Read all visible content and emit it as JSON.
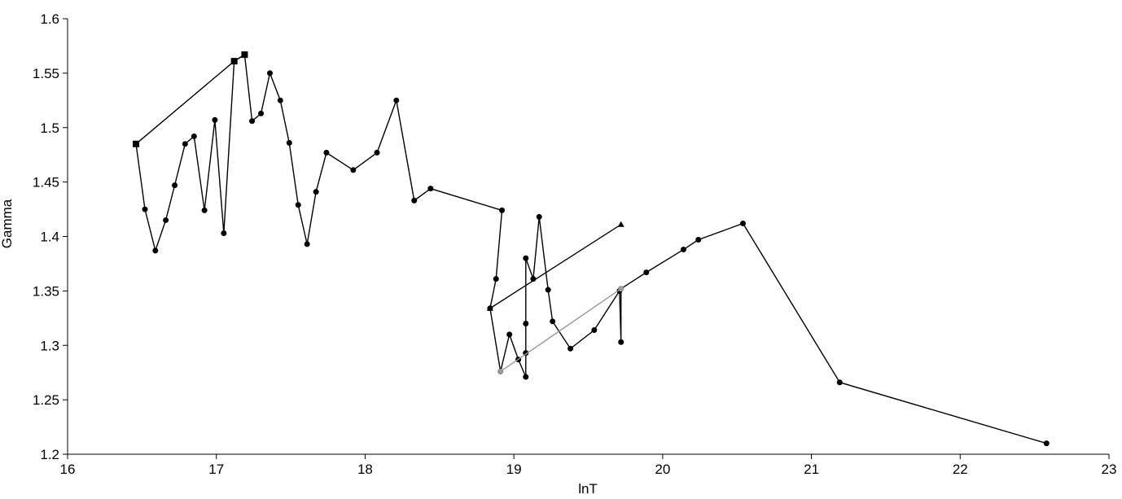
{
  "chart_data": {
    "type": "line",
    "x_label": "lnT",
    "y_label": "Gamma",
    "xlim": [
      16,
      23
    ],
    "xticks": [
      16,
      17,
      18,
      19,
      20,
      21,
      22,
      23
    ],
    "ylim": [
      1.2,
      1.6
    ],
    "yticks": [
      1.2,
      1.25,
      1.3,
      1.35,
      1.4,
      1.45,
      1.5,
      1.55,
      1.6
    ],
    "series": [
      {
        "color": "#000000",
        "marker": "circle",
        "x": [
          16.46,
          16.52,
          16.59,
          16.66,
          16.72,
          16.79,
          16.85,
          16.92,
          16.99,
          17.05,
          17.12,
          17.19,
          17.24,
          17.3,
          17.36,
          17.43,
          17.49,
          17.55,
          17.61,
          17.67,
          17.74,
          17.92,
          18.08,
          18.21,
          18.33,
          18.44,
          18.92,
          18.88,
          18.84,
          18.91,
          18.97,
          19.03,
          19.08,
          19.08,
          19.08,
          19.08,
          19.13,
          19.17,
          19.23,
          19.26,
          19.38,
          19.54,
          19.71,
          19.72,
          19.72,
          19.89,
          20.14,
          20.24,
          20.54,
          21.19,
          22.58
        ],
        "values": [
          1.485,
          1.425,
          1.387,
          1.415,
          1.447,
          1.485,
          1.492,
          1.424,
          1.507,
          1.403,
          1.561,
          1.567,
          1.506,
          1.513,
          1.55,
          1.525,
          1.486,
          1.429,
          1.393,
          1.441,
          1.477,
          1.461,
          1.477,
          1.525,
          1.433,
          1.444,
          1.424,
          1.361,
          1.334,
          1.276,
          1.31,
          1.287,
          1.271,
          1.293,
          1.32,
          1.38,
          1.361,
          1.418,
          1.351,
          1.322,
          1.297,
          1.314,
          1.35,
          1.303,
          1.352,
          1.367,
          1.388,
          1.397,
          1.412,
          1.266,
          1.21
        ]
      },
      {
        "color": "#000000",
        "marker": "square",
        "x": [
          16.46,
          17.12,
          17.19
        ],
        "values": [
          1.485,
          1.561,
          1.567
        ]
      },
      {
        "color": "#000000",
        "marker": "triangle",
        "x": [
          18.84,
          19.72
        ],
        "values": [
          1.334,
          1.411
        ]
      },
      {
        "color": "#999999",
        "marker": "circle",
        "x": [
          18.91,
          19.72
        ],
        "values": [
          1.276,
          1.352
        ]
      }
    ]
  }
}
